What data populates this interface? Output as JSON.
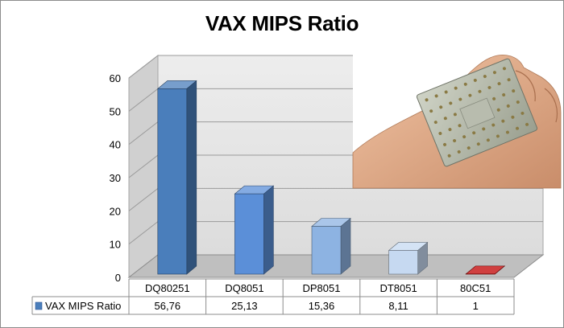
{
  "chart_data": {
    "type": "bar",
    "style": "3d",
    "title": "VAX MIPS Ratio",
    "categories": [
      "DQ80251",
      "DQ8051",
      "DP8051",
      "DT8051",
      "80C51"
    ],
    "series": [
      {
        "name": "VAX MIPS Ratio",
        "values": [
          56.76,
          25.13,
          15.36,
          8.11,
          1
        ],
        "value_labels": [
          "56,76",
          "25,13",
          "15,36",
          "8,11",
          "1"
        ]
      }
    ],
    "ylim": [
      0,
      60
    ],
    "yticks": [
      "0",
      "10",
      "20",
      "30",
      "40",
      "50",
      "60"
    ],
    "grid": true,
    "legend": "data table, left",
    "bar_colors": [
      "#4a7ebb",
      "#5b8fd8",
      "#8db3e2",
      "#c6d9f1",
      "#c00000"
    ],
    "wall_color": "#e6e6e6",
    "floor_color": "#bfbfbf"
  },
  "overlay_image": {
    "icon": "cpu-chip-photo-icon",
    "description": "hand holding a CPU chip"
  }
}
